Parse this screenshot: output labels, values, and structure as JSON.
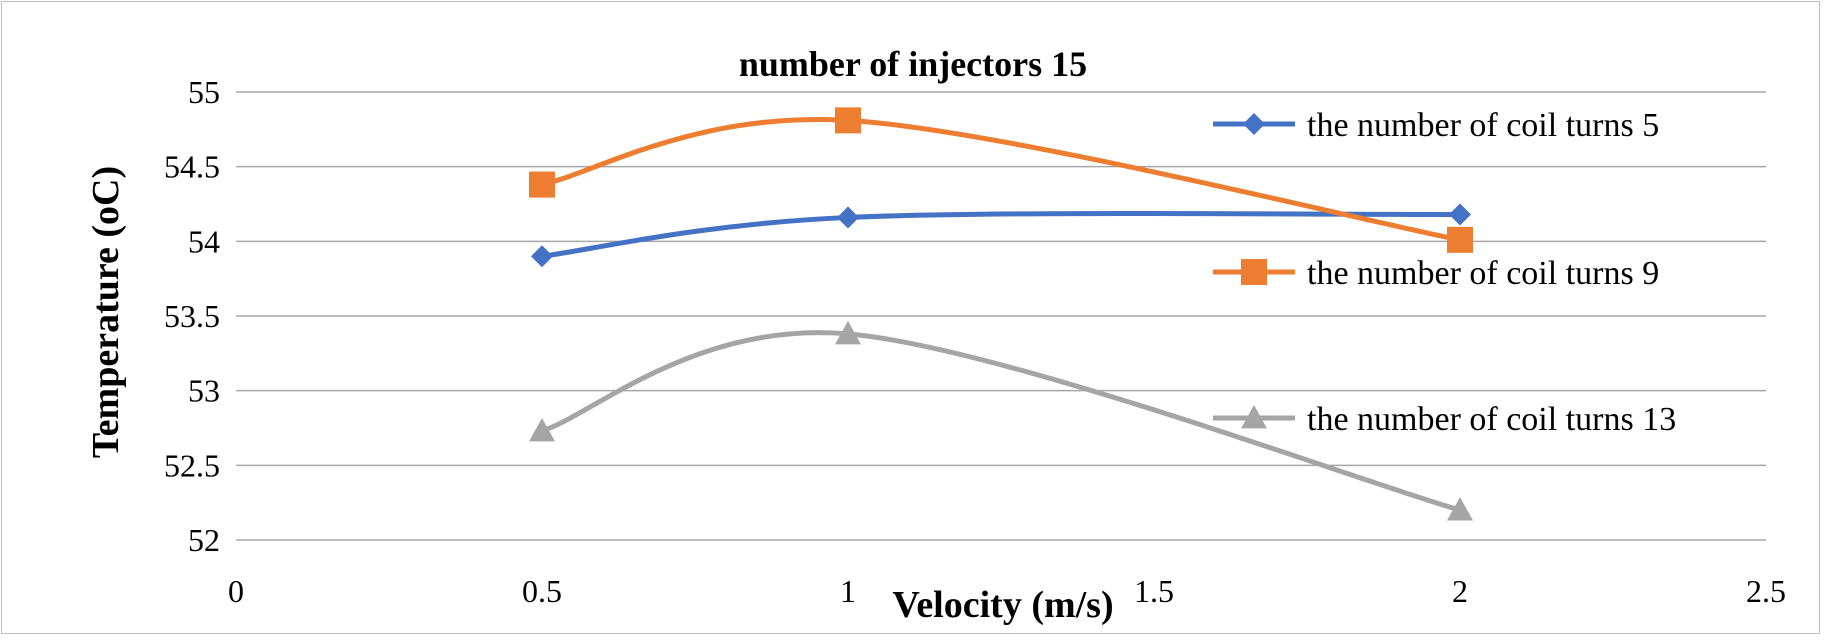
{
  "chart_data": {
    "type": "line",
    "title": "number of injectors 15",
    "xlabel": "Velocity (m/s)",
    "ylabel": "Temperature (oC)",
    "xlim": [
      0,
      2.5
    ],
    "ylim": [
      52,
      55
    ],
    "x_ticks": [
      "0",
      "0.5",
      "1",
      "1.5",
      "2",
      "2.5"
    ],
    "y_ticks": [
      "52",
      "52.5",
      "53",
      "53.5",
      "54",
      "54.5",
      "55"
    ],
    "grid": "horizontal",
    "legend_position": "right",
    "smooth": true,
    "series": [
      {
        "name": "the number of coil turns 5",
        "color": "#4472C4",
        "marker": "diamond",
        "x": [
          0.5,
          1,
          2
        ],
        "y": [
          53.9,
          54.16,
          54.18
        ]
      },
      {
        "name": "the number of coil turns 9",
        "color": "#ED7D31",
        "marker": "square",
        "x": [
          0.5,
          1,
          2
        ],
        "y": [
          54.38,
          54.81,
          54.01
        ]
      },
      {
        "name": "the number of coil turns 13",
        "color": "#A5A5A5",
        "marker": "triangle",
        "x": [
          0.5,
          1,
          2
        ],
        "y": [
          52.73,
          53.38,
          52.2
        ]
      }
    ]
  }
}
